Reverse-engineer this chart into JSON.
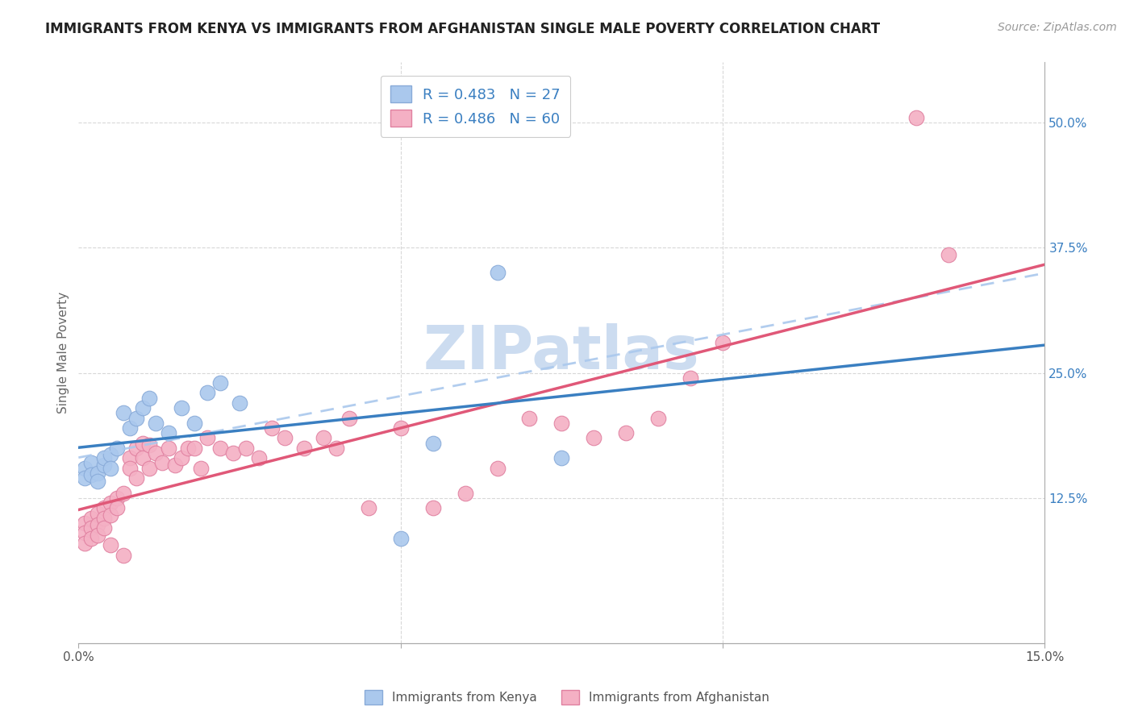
{
  "title": "IMMIGRANTS FROM KENYA VS IMMIGRANTS FROM AFGHANISTAN SINGLE MALE POVERTY CORRELATION CHART",
  "source": "Source: ZipAtlas.com",
  "ylabel_label": "Single Male Poverty",
  "right_ytick_labels": [
    "50.0%",
    "37.5%",
    "25.0%",
    "12.5%"
  ],
  "right_ytick_values": [
    0.5,
    0.375,
    0.25,
    0.125
  ],
  "xlim": [
    0.0,
    0.15
  ],
  "ylim": [
    -0.02,
    0.56
  ],
  "background_color": "#ffffff",
  "grid_color": "#d8d8d8",
  "watermark_text": "ZIPatlas",
  "watermark_color": "#ccdcf0",
  "kenya_color": "#aac8ed",
  "kenya_edge_color": "#88aad8",
  "afghanistan_color": "#f4b0c4",
  "afghanistan_edge_color": "#e080a0",
  "kenya_line_color": "#3a7fc1",
  "afghanistan_line_color": "#e05878",
  "kenya_dash_color": "#aac8ed",
  "legend_kenya_label": "R = 0.483   N = 27",
  "legend_afghanistan_label": "R = 0.486   N = 60",
  "legend_text_color": "#3a7fc1",
  "title_fontsize": 12,
  "source_fontsize": 10,
  "kenya_x": [
    0.001,
    0.001,
    0.002,
    0.002,
    0.003,
    0.003,
    0.004,
    0.004,
    0.005,
    0.005,
    0.006,
    0.007,
    0.008,
    0.009,
    0.01,
    0.011,
    0.012,
    0.014,
    0.016,
    0.018,
    0.02,
    0.022,
    0.025,
    0.05,
    0.055,
    0.065,
    0.075
  ],
  "kenya_y": [
    0.155,
    0.145,
    0.16,
    0.148,
    0.15,
    0.142,
    0.158,
    0.165,
    0.168,
    0.155,
    0.175,
    0.21,
    0.195,
    0.205,
    0.215,
    0.225,
    0.2,
    0.19,
    0.215,
    0.2,
    0.23,
    0.24,
    0.22,
    0.085,
    0.18,
    0.35,
    0.165
  ],
  "afghanistan_x": [
    0.001,
    0.001,
    0.001,
    0.002,
    0.002,
    0.002,
    0.003,
    0.003,
    0.003,
    0.004,
    0.004,
    0.004,
    0.005,
    0.005,
    0.005,
    0.006,
    0.006,
    0.007,
    0.007,
    0.008,
    0.008,
    0.009,
    0.009,
    0.01,
    0.01,
    0.011,
    0.011,
    0.012,
    0.013,
    0.014,
    0.015,
    0.016,
    0.017,
    0.018,
    0.019,
    0.02,
    0.022,
    0.024,
    0.026,
    0.028,
    0.03,
    0.032,
    0.035,
    0.038,
    0.04,
    0.042,
    0.045,
    0.05,
    0.055,
    0.06,
    0.065,
    0.07,
    0.075,
    0.08,
    0.085,
    0.09,
    0.095,
    0.1,
    0.13,
    0.135
  ],
  "afghanistan_y": [
    0.1,
    0.09,
    0.08,
    0.105,
    0.095,
    0.085,
    0.11,
    0.098,
    0.088,
    0.115,
    0.105,
    0.095,
    0.12,
    0.108,
    0.078,
    0.125,
    0.115,
    0.13,
    0.068,
    0.165,
    0.155,
    0.175,
    0.145,
    0.18,
    0.165,
    0.178,
    0.155,
    0.17,
    0.16,
    0.175,
    0.158,
    0.165,
    0.175,
    0.175,
    0.155,
    0.185,
    0.175,
    0.17,
    0.175,
    0.165,
    0.195,
    0.185,
    0.175,
    0.185,
    0.175,
    0.205,
    0.115,
    0.195,
    0.115,
    0.13,
    0.155,
    0.205,
    0.2,
    0.185,
    0.19,
    0.205,
    0.245,
    0.28,
    0.505,
    0.368
  ]
}
